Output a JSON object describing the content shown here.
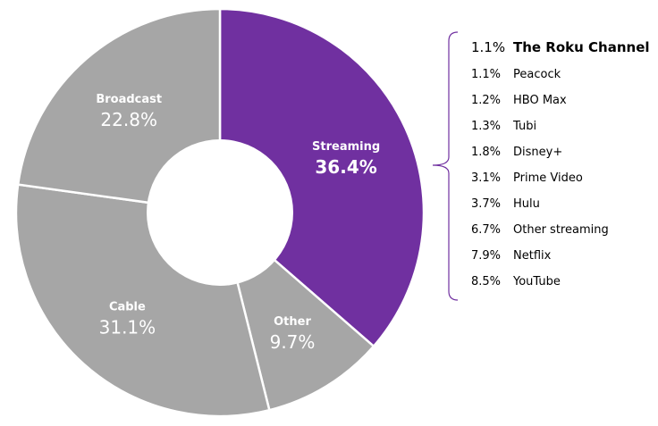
{
  "chart_data": {
    "type": "pie",
    "variant": "donut",
    "slices": [
      {
        "label": "Streaming",
        "value": 36.4,
        "value_label": "36.4%",
        "color": "#7030a0",
        "emphasis": true
      },
      {
        "label": "Other",
        "value": 9.7,
        "value_label": "9.7%",
        "color": "#a6a6a6",
        "emphasis": false
      },
      {
        "label": "Cable",
        "value": 31.1,
        "value_label": "31.1%",
        "color": "#a6a6a6",
        "emphasis": false
      },
      {
        "label": "Broadcast",
        "value": 22.8,
        "value_label": "22.8%",
        "color": "#a6a6a6",
        "emphasis": false
      }
    ],
    "streaming_breakdown": [
      {
        "label": "The Roku Channel",
        "value": 1.1,
        "value_label": "1.1%",
        "emphasis": true
      },
      {
        "label": "Peacock",
        "value": 1.1,
        "value_label": "1.1%",
        "emphasis": false
      },
      {
        "label": "HBO Max",
        "value": 1.2,
        "value_label": "1.2%",
        "emphasis": false
      },
      {
        "label": "Tubi",
        "value": 1.3,
        "value_label": "1.3%",
        "emphasis": false
      },
      {
        "label": "Disney+",
        "value": 1.8,
        "value_label": "1.8%",
        "emphasis": false
      },
      {
        "label": "Prime Video",
        "value": 3.1,
        "value_label": "3.1%",
        "emphasis": false
      },
      {
        "label": "Hulu",
        "value": 3.7,
        "value_label": "3.7%",
        "emphasis": false
      },
      {
        "label": "Other streaming",
        "value": 6.7,
        "value_label": "6.7%",
        "emphasis": false
      },
      {
        "label": "Netflix",
        "value": 7.9,
        "value_label": "7.9%",
        "emphasis": false
      },
      {
        "label": "YouTube",
        "value": 8.5,
        "value_label": "8.5%",
        "emphasis": false
      }
    ],
    "bracket_color": "#7030a0",
    "title": "",
    "legend": "none"
  }
}
